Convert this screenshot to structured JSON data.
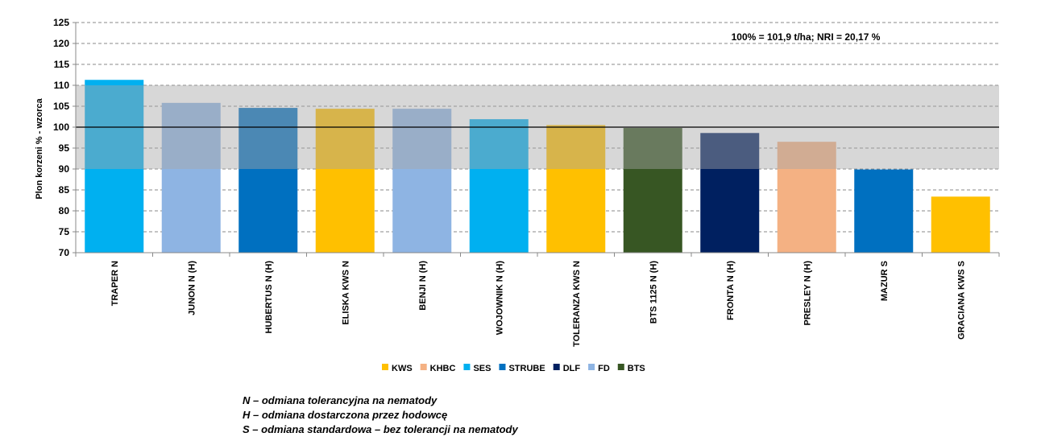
{
  "chart_data": {
    "type": "bar",
    "annotation": "100% = 101,9 t/ha;  NRI = 20,17 %",
    "ylabel": "Plon korzeni % - wzorca",
    "xlabel": "",
    "ylim": [
      70,
      125
    ],
    "yticks": [
      70,
      75,
      80,
      85,
      90,
      95,
      100,
      105,
      110,
      115,
      120,
      125
    ],
    "grid": true,
    "reference_band": [
      90,
      110
    ],
    "reference_line": 100,
    "legend_position": "bottom",
    "categories": [
      "TRAPER N",
      "JUNON N (H)",
      "HUBERTUS N (H)",
      "ELISKA KWS N",
      "BENJI N (H)",
      "WOJOWNIK N (H)",
      "TOLERANZA KWS N",
      "BTS 1125 N (H)",
      "FRONTA N (H)",
      "PRESLEY N (H)",
      "MAZUR S",
      "GRACIANA KWS S"
    ],
    "values": [
      111.3,
      105.8,
      104.6,
      104.4,
      104.4,
      101.9,
      100.5,
      99.8,
      98.6,
      96.5,
      89.9,
      83.4
    ],
    "breeders": [
      "SES",
      "FD",
      "STRUBE",
      "KWS",
      "FD",
      "SES",
      "KWS",
      "BTS",
      "DLF",
      "KHBC",
      "STRUBE",
      "KWS"
    ],
    "legend": [
      {
        "name": "KWS",
        "color": "#FFC000"
      },
      {
        "name": "KHBC",
        "color": "#F4B183"
      },
      {
        "name": "SES",
        "color": "#00B0F0"
      },
      {
        "name": "STRUBE",
        "color": "#0070C0"
      },
      {
        "name": "DLF",
        "color": "#002060"
      },
      {
        "name": "FD",
        "color": "#8EB4E3"
      },
      {
        "name": "BTS",
        "color": "#375623"
      }
    ]
  },
  "notes": [
    "N – odmiana tolerancyjna na nematody",
    "H – odmiana dostarczona przez hodowcę",
    "S – odmiana standardowa – bez tolerancji na nematody"
  ]
}
